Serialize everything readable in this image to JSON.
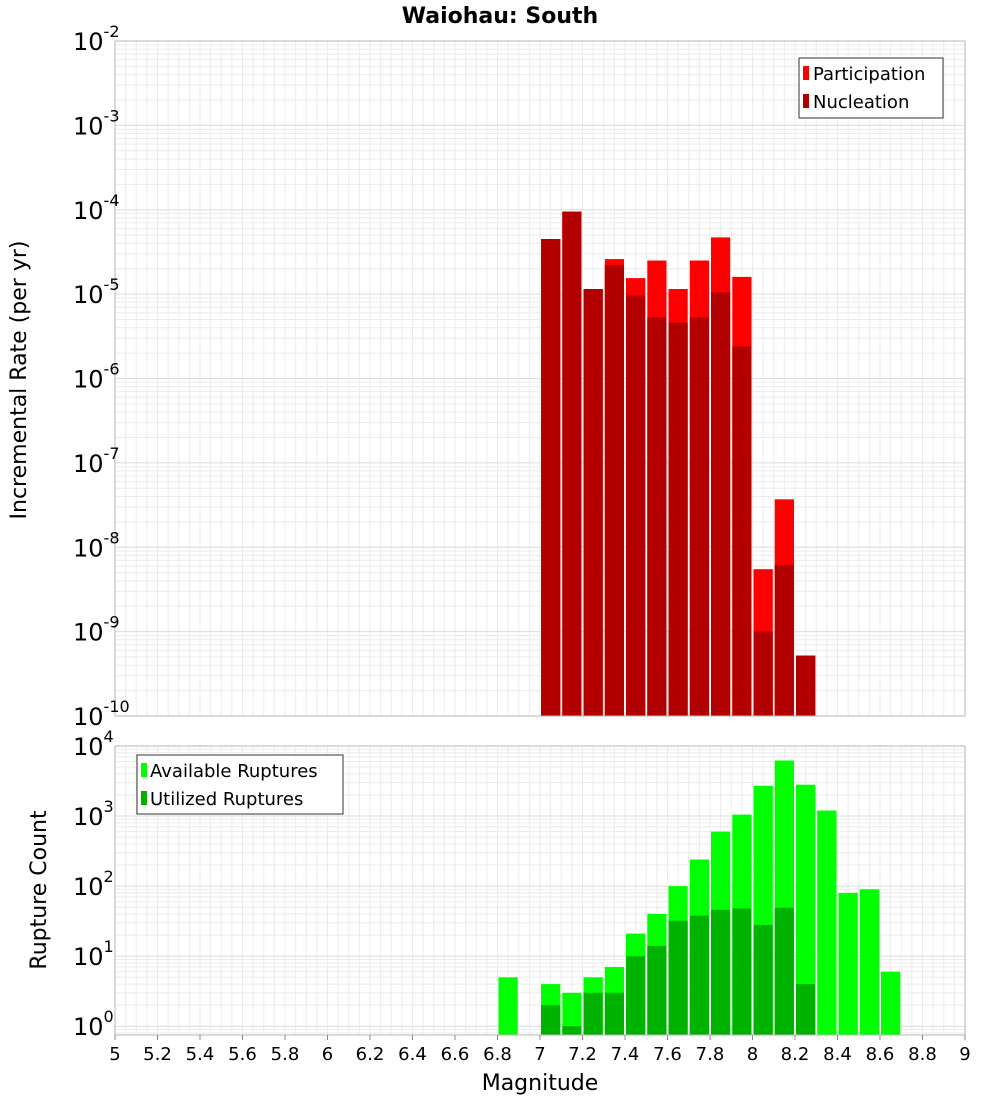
{
  "chart_data": [
    {
      "type": "bar",
      "title": "Waiohau: South",
      "xlabel": "",
      "ylabel": "Incremental Rate (per yr)",
      "yscale": "log",
      "xlim": [
        5,
        9
      ],
      "ylim": [
        1e-10,
        0.01
      ],
      "grid": true,
      "legend_position": "top-right",
      "bin_width": 0.1,
      "series": [
        {
          "name": "Participation",
          "color": "#ff0000",
          "x": [
            7.05,
            7.15,
            7.25,
            7.35,
            7.45,
            7.55,
            7.65,
            7.75,
            7.85,
            7.95,
            8.05,
            8.15,
            8.25
          ],
          "values": [
            4.5e-05,
            9.5e-05,
            1.15e-05,
            2.6e-05,
            1.55e-05,
            2.5e-05,
            1.15e-05,
            2.5e-05,
            4.7e-05,
            1.6e-05,
            5.5e-09,
            3.7e-08,
            5.2e-10
          ]
        },
        {
          "name": "Nucleation",
          "color": "#b20000",
          "x": [
            7.05,
            7.15,
            7.25,
            7.35,
            7.45,
            7.55,
            7.65,
            7.75,
            7.85,
            7.95,
            8.05,
            8.15,
            8.25
          ],
          "values": [
            4.5e-05,
            9.5e-05,
            1.15e-05,
            2.2e-05,
            9.6e-06,
            5.3e-06,
            4.6e-06,
            5.3e-06,
            1.05e-05,
            2.4e-06,
            1e-09,
            6.2e-09,
            5.2e-10
          ]
        }
      ],
      "yticks": [
        {
          "base": "10",
          "exp": "-10"
        },
        {
          "base": "10",
          "exp": "-9"
        },
        {
          "base": "10",
          "exp": "-8"
        },
        {
          "base": "10",
          "exp": "-7"
        },
        {
          "base": "10",
          "exp": "-6"
        },
        {
          "base": "10",
          "exp": "-5"
        },
        {
          "base": "10",
          "exp": "-4"
        },
        {
          "base": "10",
          "exp": "-3"
        },
        {
          "base": "10",
          "exp": "-2"
        }
      ]
    },
    {
      "type": "bar",
      "title": "",
      "xlabel": "Magnitude",
      "ylabel": "Rupture Count",
      "yscale": "log",
      "xlim": [
        5,
        9
      ],
      "ylim": [
        0.75,
        10000
      ],
      "grid": true,
      "legend_position": "top-left",
      "bin_width": 0.1,
      "series": [
        {
          "name": "Available Ruptures",
          "color": "#00ff00",
          "x": [
            6.85,
            7.05,
            7.15,
            7.25,
            7.35,
            7.45,
            7.55,
            7.65,
            7.75,
            7.85,
            7.95,
            8.05,
            8.15,
            8.25,
            8.35,
            8.45,
            8.55,
            8.65
          ],
          "values": [
            5,
            4,
            3,
            5,
            7,
            21,
            40,
            100,
            240,
            600,
            1050,
            2700,
            6200,
            2800,
            1200,
            80,
            90,
            6
          ]
        },
        {
          "name": "Utilized Ruptures",
          "color": "#00b200",
          "x": [
            7.05,
            7.15,
            7.25,
            7.35,
            7.45,
            7.55,
            7.65,
            7.75,
            7.85,
            7.95,
            8.05,
            8.15,
            8.25
          ],
          "values": [
            2,
            1,
            3,
            3,
            10,
            14,
            32,
            38,
            46,
            48,
            28,
            49,
            4
          ]
        }
      ],
      "yticks": [
        {
          "base": "10",
          "exp": "0"
        },
        {
          "base": "10",
          "exp": "1"
        },
        {
          "base": "10",
          "exp": "2"
        },
        {
          "base": "10",
          "exp": "3"
        },
        {
          "base": "10",
          "exp": "4"
        }
      ],
      "xticks": [
        "5",
        "5.2",
        "5.4",
        "5.6",
        "5.8",
        "6",
        "6.2",
        "6.4",
        "6.6",
        "6.8",
        "7",
        "7.2",
        "7.4",
        "7.6",
        "7.8",
        "8",
        "8.2",
        "8.4",
        "8.6",
        "8.8",
        "9"
      ]
    }
  ]
}
